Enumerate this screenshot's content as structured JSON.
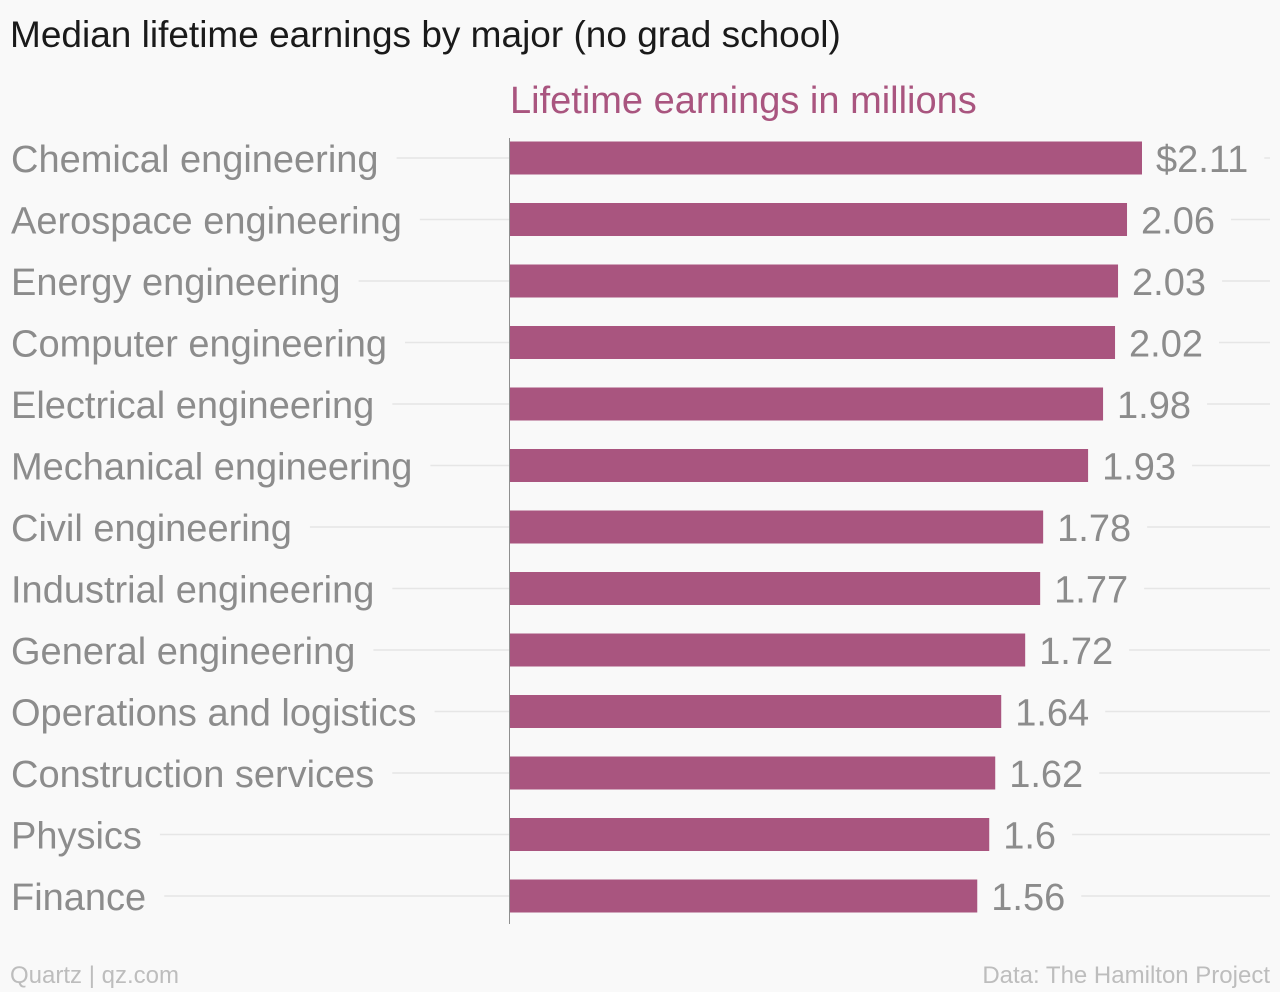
{
  "chart_data": {
    "type": "bar",
    "orientation": "horizontal",
    "title": "Median lifetime earnings by major (no grad school)",
    "series_label": "Lifetime earnings in millions",
    "categories": [
      "Chemical engineering",
      "Aerospace engineering",
      "Energy engineering",
      "Computer engineering",
      "Electrical engineering",
      "Mechanical engineering",
      "Civil engineering",
      "Industrial engineering",
      "General engineering",
      "Operations and logistics",
      "Construction services",
      "Physics",
      "Finance"
    ],
    "values": [
      2.11,
      2.06,
      2.03,
      2.02,
      1.98,
      1.93,
      1.78,
      1.77,
      1.72,
      1.64,
      1.62,
      1.6,
      1.56
    ],
    "value_labels": [
      "$2.11",
      "2.06",
      "2.03",
      "2.02",
      "1.98",
      "1.93",
      "1.78",
      "1.77",
      "1.72",
      "1.64",
      "1.62",
      "1.6",
      "1.56"
    ],
    "xlim": [
      0,
      2.11
    ],
    "bar_color": "#a9557f",
    "label_color": "#8c8c8c",
    "series_label_color": "#a9557f",
    "grid": true
  },
  "footer": {
    "source_left": "Quartz | qz.com",
    "source_right": "Data: The Hamilton Project"
  }
}
